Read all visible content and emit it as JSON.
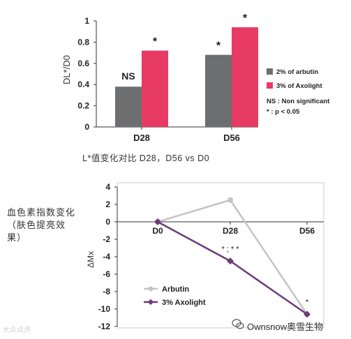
{
  "chart_data": [
    {
      "type": "bar",
      "title": "",
      "ylabel": "DL*/D0",
      "ylim": [
        0,
        1
      ],
      "yticks": [
        "0",
        "0.2",
        "0.4",
        "0.6",
        "0.8",
        "1"
      ],
      "categories": [
        "D28",
        "D56"
      ],
      "series": [
        {
          "name": "2% of arbutin",
          "values": [
            0.38,
            0.68
          ],
          "color": "#6d6e70"
        },
        {
          "name": "3% of Axolight",
          "values": [
            0.72,
            0.94
          ],
          "color": "#e73a64"
        }
      ],
      "annotations": [
        {
          "category": "D28",
          "series": 0,
          "text": "NS"
        },
        {
          "category": "D28",
          "series": 1,
          "text": "*"
        },
        {
          "category": "D56",
          "series": 0,
          "text": "*"
        },
        {
          "category": "D56",
          "series": 1,
          "text": "*"
        }
      ],
      "legend_notes": [
        "NS : Non significant",
        "* : p < 0.05"
      ],
      "legend_position": "right"
    },
    {
      "type": "line",
      "title": "",
      "ylabel": "ΔMx",
      "ylim": [
        -12,
        4
      ],
      "yticks": [
        "4",
        "2",
        "0",
        "-2",
        "-4",
        "-6",
        "-8",
        "-10",
        "-12"
      ],
      "x": [
        "D0",
        "D28",
        "D56"
      ],
      "series": [
        {
          "name": "Arbutin",
          "values": [
            0,
            2.5,
            -10.6
          ],
          "color": "#c4c4c4"
        },
        {
          "name": "3% Axolight",
          "values": [
            0,
            -4.5,
            -10.6
          ],
          "color": "#6b3b7a"
        }
      ],
      "annotations": [
        {
          "x": "D28",
          "text": "* ; * *"
        },
        {
          "x": "D56",
          "text": "*"
        }
      ],
      "legend_position": "bottom-left"
    }
  ],
  "captions": {
    "bar_caption": "L*值变化对比 D28，D56 vs D0",
    "side_caption": "血色素指数变化（肤色提亮效果）"
  },
  "watermark": "大众点评",
  "brand": "Ownsnow奥雪生物"
}
